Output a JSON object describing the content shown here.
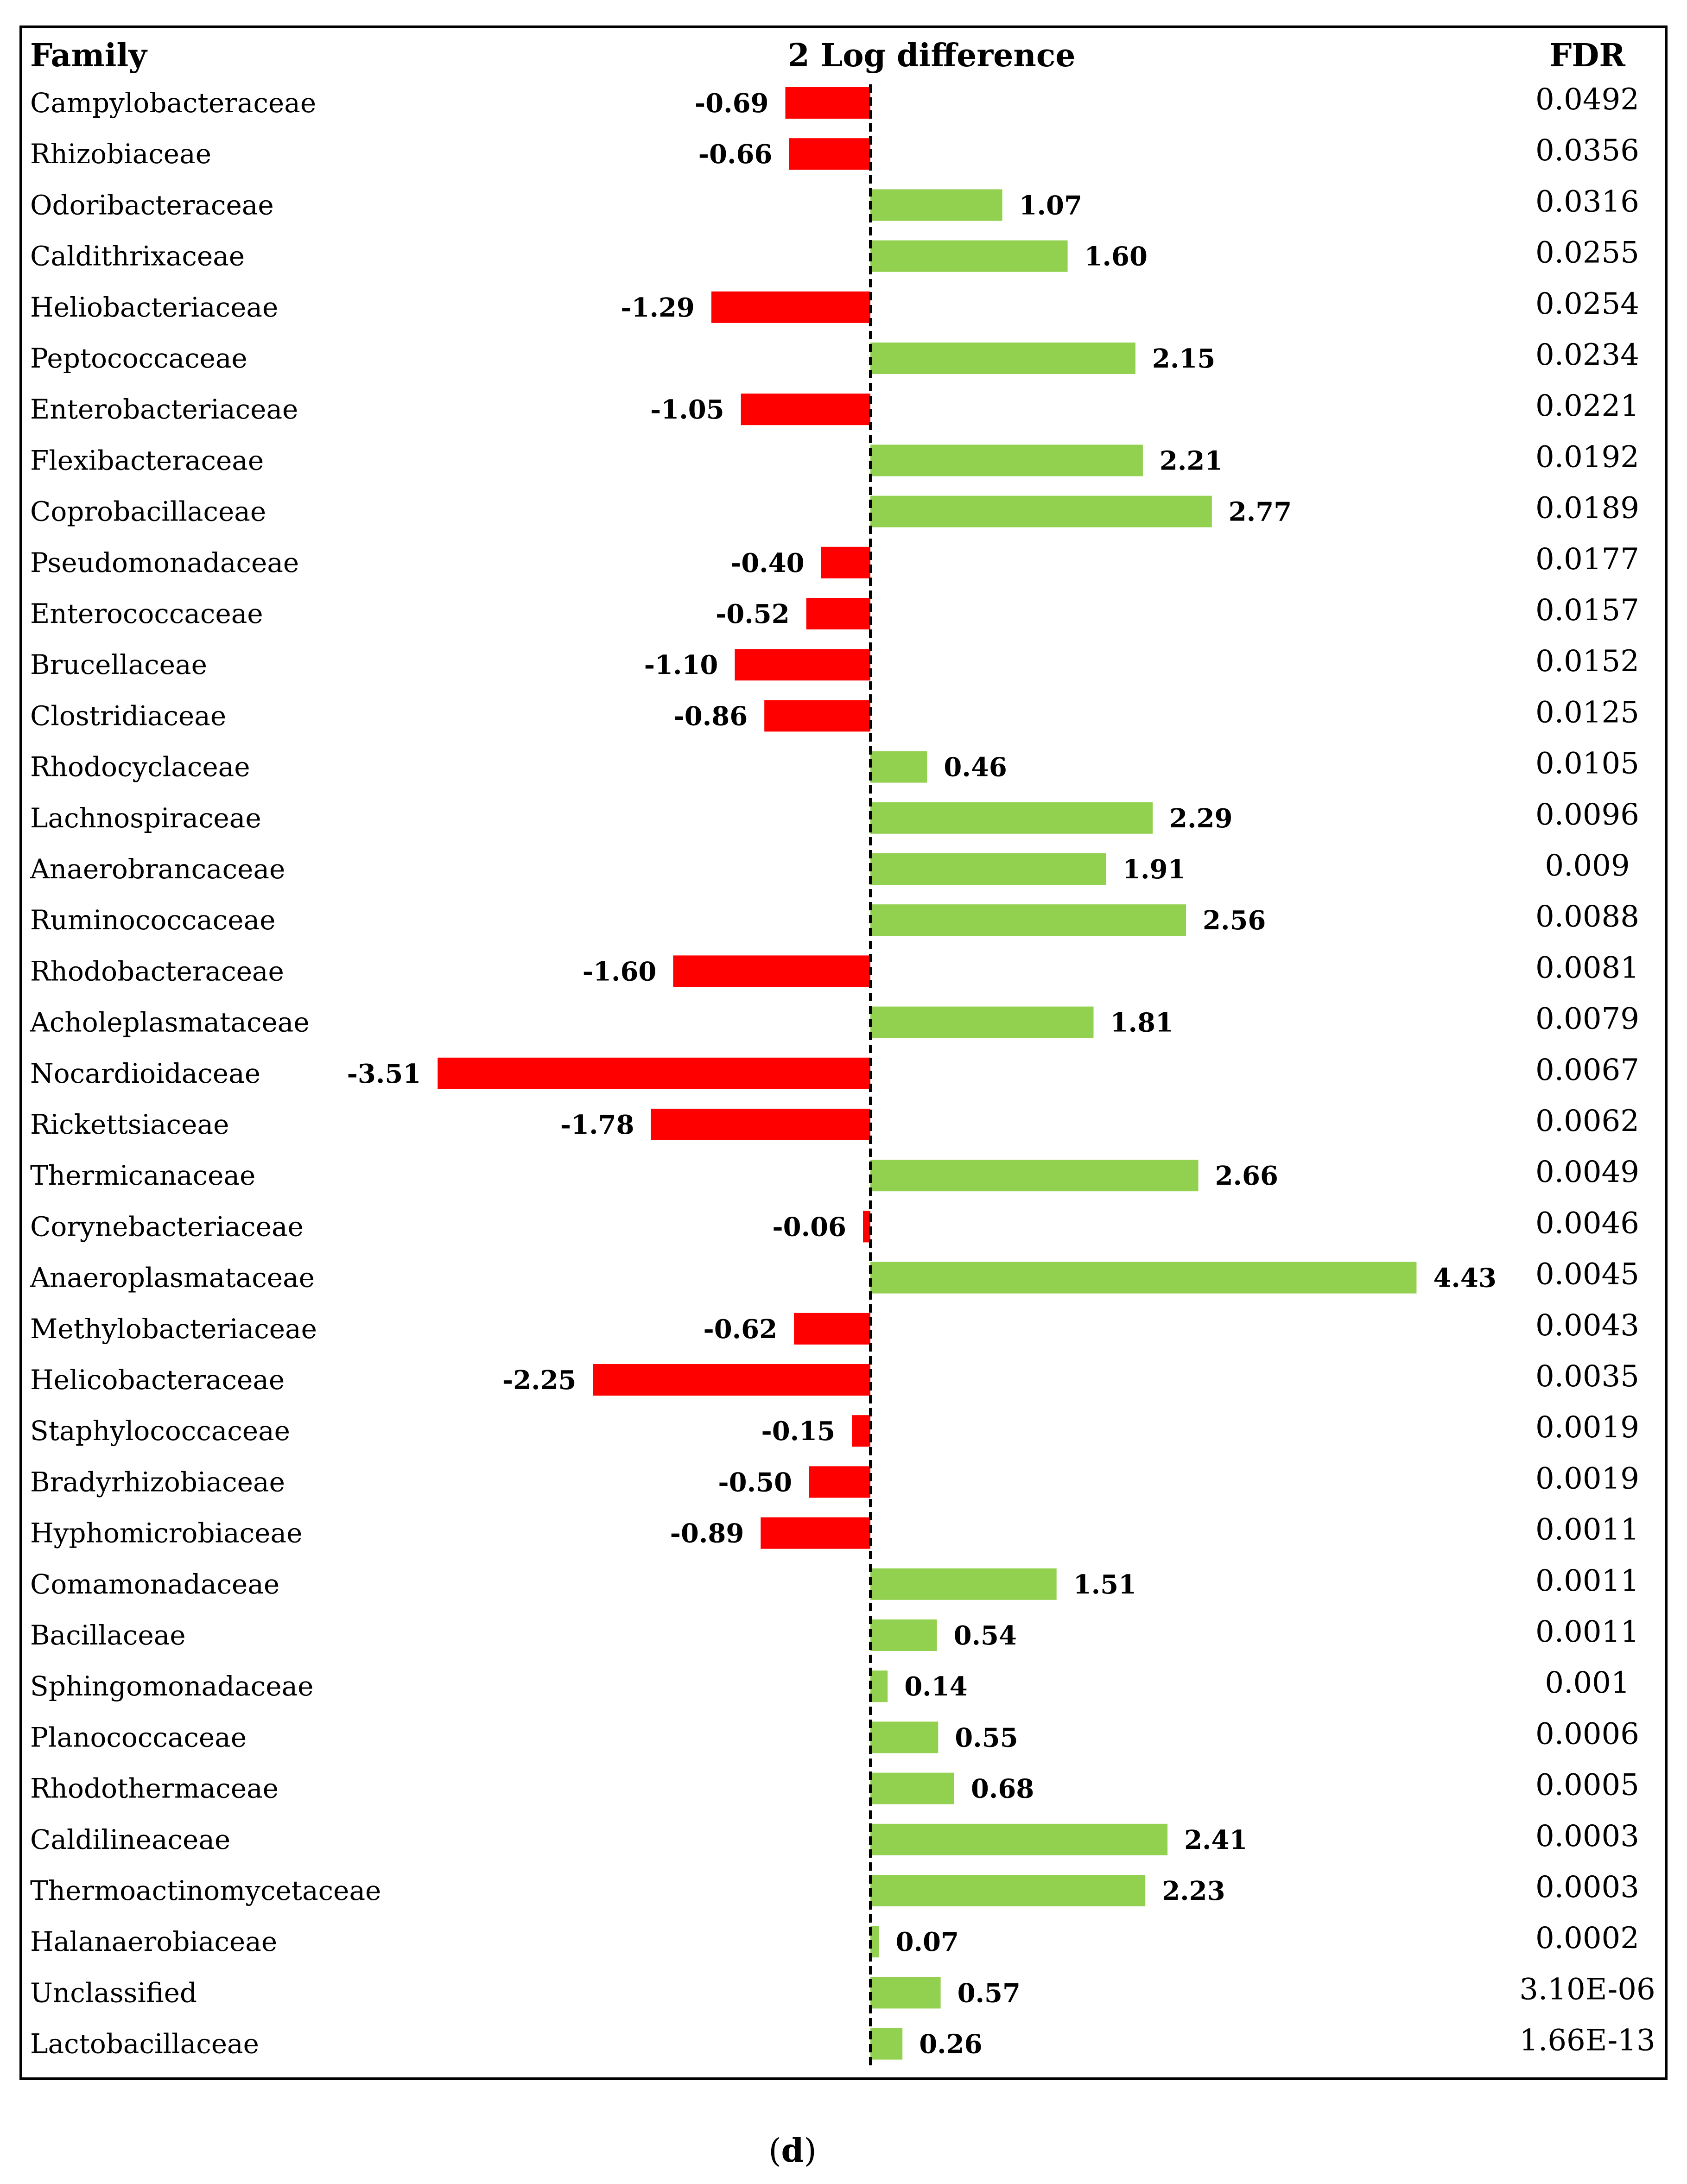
{
  "chart_data": {
    "type": "bar",
    "orientation": "horizontal",
    "title": "2 Log difference",
    "category_header": "Family",
    "fdr_header": "FDR",
    "zero_line": "dashed",
    "colors": {
      "negative": "#ff0000",
      "positive": "#92d050"
    },
    "rows": [
      {
        "family": "Campylobacteraceae",
        "value": -0.69,
        "label": "-0.69",
        "fdr": "0.0492"
      },
      {
        "family": "Rhizobiaceae",
        "value": -0.66,
        "label": "-0.66",
        "fdr": "0.0356"
      },
      {
        "family": "Odoribacteraceae",
        "value": 1.07,
        "label": "1.07",
        "fdr": "0.0316"
      },
      {
        "family": "Caldithrixaceae",
        "value": 1.6,
        "label": "1.60",
        "fdr": "0.0255"
      },
      {
        "family": "Heliobacteriaceae",
        "value": -1.29,
        "label": "-1.29",
        "fdr": "0.0254"
      },
      {
        "family": "Peptococcaceae",
        "value": 2.15,
        "label": "2.15",
        "fdr": "0.0234"
      },
      {
        "family": "Enterobacteriaceae",
        "value": -1.05,
        "label": "-1.05",
        "fdr": "0.0221"
      },
      {
        "family": "Flexibacteraceae",
        "value": 2.21,
        "label": "2.21",
        "fdr": "0.0192"
      },
      {
        "family": "Coprobacillaceae",
        "value": 2.77,
        "label": "2.77",
        "fdr": "0.0189"
      },
      {
        "family": "Pseudomonadaceae",
        "value": -0.4,
        "label": "-0.40",
        "fdr": "0.0177"
      },
      {
        "family": "Enterococcaceae",
        "value": -0.52,
        "label": "-0.52",
        "fdr": "0.0157"
      },
      {
        "family": "Brucellaceae",
        "value": -1.1,
        "label": "-1.10",
        "fdr": "0.0152"
      },
      {
        "family": "Clostridiaceae",
        "value": -0.86,
        "label": "-0.86",
        "fdr": "0.0125"
      },
      {
        "family": "Rhodocyclaceae",
        "value": 0.46,
        "label": "0.46",
        "fdr": "0.0105"
      },
      {
        "family": "Lachnospiraceae",
        "value": 2.29,
        "label": "2.29",
        "fdr": "0.0096"
      },
      {
        "family": "Anaerobrancaceae",
        "value": 1.91,
        "label": "1.91",
        "fdr": "0.009"
      },
      {
        "family": "Ruminococcaceae",
        "value": 2.56,
        "label": "2.56",
        "fdr": "0.0088"
      },
      {
        "family": "Rhodobacteraceae",
        "value": -1.6,
        "label": "-1.60",
        "fdr": "0.0081"
      },
      {
        "family": "Acholeplasmataceae",
        "value": 1.81,
        "label": "1.81",
        "fdr": "0.0079"
      },
      {
        "family": "Nocardioidaceae",
        "value": -3.51,
        "label": "-3.51",
        "fdr": "0.0067"
      },
      {
        "family": "Rickettsiaceae",
        "value": -1.78,
        "label": "-1.78",
        "fdr": "0.0062"
      },
      {
        "family": "Thermicanaceae",
        "value": 2.66,
        "label": "2.66",
        "fdr": "0.0049"
      },
      {
        "family": "Corynebacteriaceae",
        "value": -0.06,
        "label": "-0.06",
        "fdr": "0.0046"
      },
      {
        "family": "Anaeroplasmataceae",
        "value": 4.43,
        "label": "4.43",
        "fdr": "0.0045"
      },
      {
        "family": "Methylobacteriaceae",
        "value": -0.62,
        "label": "-0.62",
        "fdr": "0.0043"
      },
      {
        "family": "Helicobacteraceae",
        "value": -2.25,
        "label": "-2.25",
        "fdr": "0.0035"
      },
      {
        "family": "Staphylococcaceae",
        "value": -0.15,
        "label": "-0.15",
        "fdr": "0.0019"
      },
      {
        "family": "Bradyrhizobiaceae",
        "value": -0.5,
        "label": "-0.50",
        "fdr": "0.0019"
      },
      {
        "family": "Hyphomicrobiaceae",
        "value": -0.89,
        "label": "-0.89",
        "fdr": "0.0011"
      },
      {
        "family": "Comamonadaceae",
        "value": 1.51,
        "label": "1.51",
        "fdr": "0.0011"
      },
      {
        "family": "Bacillaceae",
        "value": 0.54,
        "label": "0.54",
        "fdr": "0.0011"
      },
      {
        "family": "Sphingomonadaceae",
        "value": 0.14,
        "label": "0.14",
        "fdr": "0.001"
      },
      {
        "family": "Planococcaceae",
        "value": 0.55,
        "label": "0.55",
        "fdr": "0.0006"
      },
      {
        "family": "Rhodothermaceae",
        "value": 0.68,
        "label": "0.68",
        "fdr": "0.0005"
      },
      {
        "family": "Caldilineaceae",
        "value": 2.41,
        "label": "2.41",
        "fdr": "0.0003"
      },
      {
        "family": "Thermoactinomycetaceae",
        "value": 2.23,
        "label": "2.23",
        "fdr": "0.0003"
      },
      {
        "family": "Halanaerobiaceae",
        "value": 0.07,
        "label": "0.07",
        "fdr": "0.0002"
      },
      {
        "family": "Unclassified",
        "value": 0.57,
        "label": "0.57",
        "fdr": "3.10E-06"
      },
      {
        "family": "Lactobacillaceae",
        "value": 0.26,
        "label": "0.26",
        "fdr": "1.66E-13"
      }
    ]
  },
  "caption": {
    "open": "(",
    "letter": "d",
    "close": ")"
  }
}
